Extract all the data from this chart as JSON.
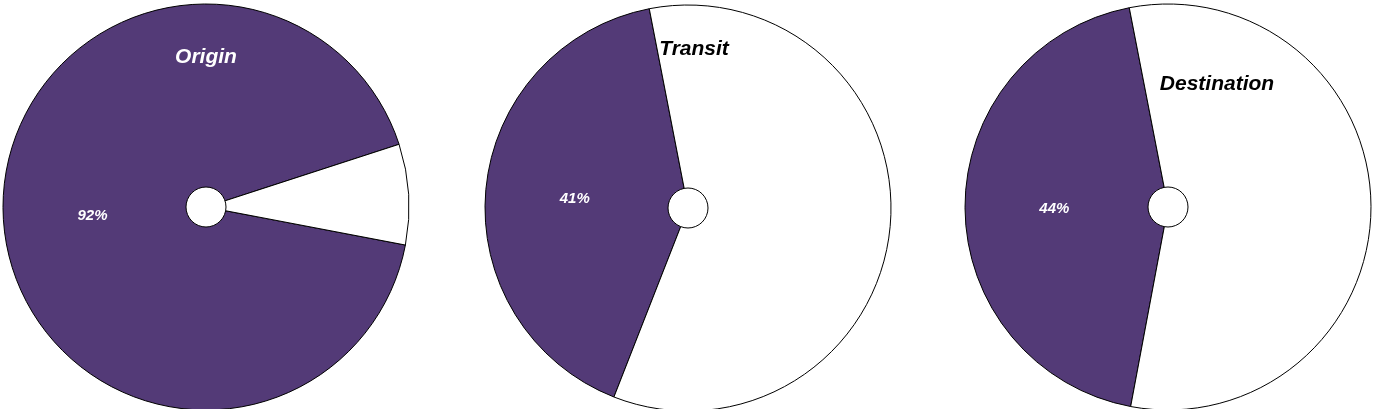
{
  "chart_data": [
    {
      "type": "pie",
      "title": "Origin",
      "categories": [
        null,
        null
      ],
      "values": [
        92,
        8
      ],
      "colors": [
        "#533a77",
        "#ffffff"
      ],
      "value_labels": [
        "92%",
        null
      ]
    },
    {
      "type": "pie",
      "title": "Transit",
      "categories": [
        null,
        null
      ],
      "values": [
        41,
        59
      ],
      "colors": [
        "#533a77",
        "#ffffff"
      ],
      "value_labels": [
        "41%",
        null
      ]
    },
    {
      "type": "pie",
      "title": "Destination",
      "categories": [
        null,
        null
      ],
      "values": [
        44,
        56
      ],
      "colors": [
        "#533a77",
        "#ffffff"
      ],
      "value_labels": [
        "44%",
        null
      ]
    }
  ]
}
